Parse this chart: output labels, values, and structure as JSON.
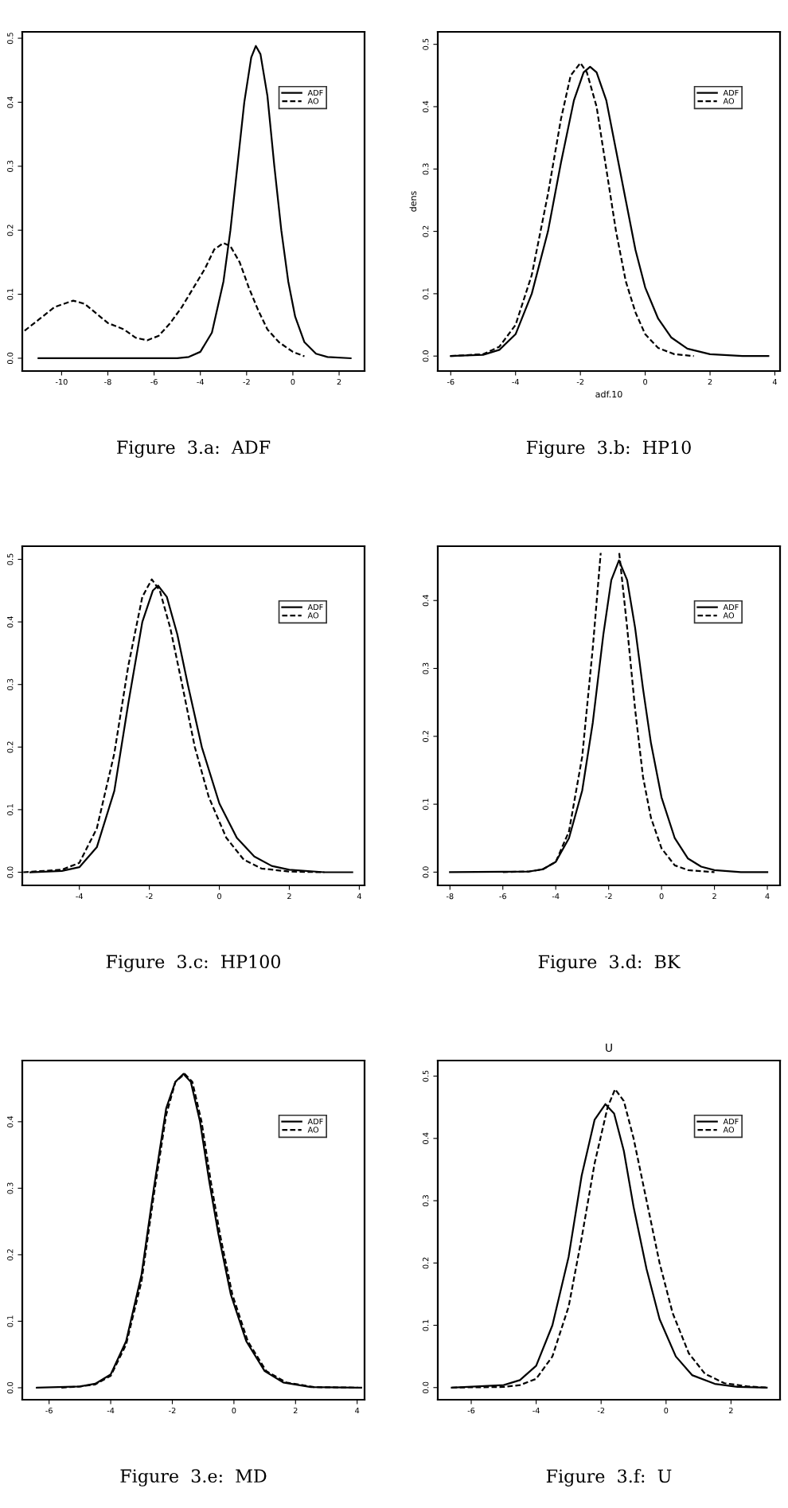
{
  "chart_data": [
    {
      "type": "line",
      "xlim": [
        -11.7,
        3.1
      ],
      "ylim": [
        -0.02,
        0.51
      ],
      "xticks": [
        -10,
        -8,
        -6,
        -4,
        -2,
        0,
        2
      ],
      "yticks": [
        {
          "value": 0,
          "label": "0.0"
        },
        {
          "value": 0.1,
          "label": "0.1"
        },
        {
          "value": 0.2,
          "label": "0.2"
        },
        {
          "value": 0.3,
          "label": "0.3"
        },
        {
          "value": 0.4,
          "label": "0.4"
        },
        {
          "value": 0.5,
          "label": "0.5"
        }
      ],
      "legend": "top right",
      "grid": false,
      "annotations": [
        "Figure  3.a:  ADF"
      ],
      "series": [
        {
          "name": "ADF",
          "color": "#000000",
          "line_style": "solid",
          "x": [
            -11,
            -5,
            -4.5,
            -4,
            -3.5,
            -3,
            -2.7,
            -2.4,
            -2.1,
            -1.8,
            -1.6,
            -1.4,
            -1.1,
            -0.8,
            -0.5,
            -0.2,
            0.1,
            0.5,
            1,
            1.5,
            2.5
          ],
          "values": [
            0,
            0,
            0.002,
            0.01,
            0.04,
            0.12,
            0.2,
            0.3,
            0.4,
            0.47,
            0.488,
            0.475,
            0.41,
            0.3,
            0.2,
            0.12,
            0.065,
            0.025,
            0.007,
            0.002,
            0
          ]
        },
        {
          "name": "AO",
          "color": "#000000",
          "line_style": "dashed",
          "x": [
            -11.6,
            -11,
            -10.3,
            -9.5,
            -9,
            -8.5,
            -8,
            -7.3,
            -6.8,
            -6.3,
            -5.8,
            -5.3,
            -4.8,
            -4.3,
            -3.8,
            -3.4,
            -3.0,
            -2.7,
            -2.3,
            -1.9,
            -1.5,
            -1.1,
            -0.6,
            0,
            0.5
          ],
          "values": [
            0.043,
            0.06,
            0.08,
            0.09,
            0.085,
            0.07,
            0.055,
            0.045,
            0.032,
            0.028,
            0.035,
            0.055,
            0.08,
            0.11,
            0.14,
            0.17,
            0.18,
            0.175,
            0.15,
            0.11,
            0.075,
            0.045,
            0.025,
            0.01,
            0.003
          ]
        }
      ]
    },
    {
      "type": "line",
      "xlabel": "adf.10",
      "ylabel": "dens",
      "xlim": [
        -6.4,
        4.16
      ],
      "ylim": [
        -0.024,
        0.52
      ],
      "xticks": [
        -6,
        -4,
        -2,
        0,
        2,
        4
      ],
      "yticks": [
        {
          "value": 0,
          "label": "0.0"
        },
        {
          "value": 0.1,
          "label": "0.1"
        },
        {
          "value": 0.2,
          "label": "0.2"
        },
        {
          "value": 0.3,
          "label": "0.3"
        },
        {
          "value": 0.4,
          "label": "0.4"
        },
        {
          "value": 0.5,
          "label": "0.5"
        }
      ],
      "legend": "top right",
      "grid": false,
      "annotations": [
        "Figure  3.b:  HP10"
      ],
      "series": [
        {
          "name": "ADF",
          "color": "#000000",
          "line_style": "solid",
          "x": [
            -6,
            -5,
            -4.5,
            -4,
            -3.5,
            -3,
            -2.6,
            -2.2,
            -1.9,
            -1.7,
            -1.5,
            -1.2,
            -0.9,
            -0.6,
            -0.3,
            0,
            0.4,
            0.8,
            1.3,
            2,
            3,
            3.8
          ],
          "values": [
            0,
            0.002,
            0.01,
            0.035,
            0.1,
            0.2,
            0.31,
            0.41,
            0.455,
            0.464,
            0.455,
            0.41,
            0.33,
            0.25,
            0.17,
            0.11,
            0.06,
            0.03,
            0.012,
            0.003,
            0,
            0
          ]
        },
        {
          "name": "AO",
          "color": "#000000",
          "line_style": "dashed",
          "x": [
            -6,
            -5,
            -4.5,
            -4,
            -3.5,
            -3,
            -2.6,
            -2.3,
            -2.0,
            -1.8,
            -1.5,
            -1.2,
            -0.9,
            -0.6,
            -0.3,
            0,
            0.4,
            0.9,
            1.5
          ],
          "values": [
            0,
            0.003,
            0.015,
            0.05,
            0.13,
            0.26,
            0.38,
            0.45,
            0.47,
            0.455,
            0.4,
            0.3,
            0.2,
            0.12,
            0.07,
            0.035,
            0.013,
            0.003,
            0
          ]
        }
      ]
    },
    {
      "type": "line",
      "xlim": [
        -5.63,
        4.15
      ],
      "ylim": [
        -0.021,
        0.521
      ],
      "xticks": [
        -4,
        -2,
        0,
        2,
        4
      ],
      "yticks": [
        {
          "value": 0,
          "label": "0.0"
        },
        {
          "value": 0.1,
          "label": "0.1"
        },
        {
          "value": 0.2,
          "label": "0.2"
        },
        {
          "value": 0.3,
          "label": "0.3"
        },
        {
          "value": 0.4,
          "label": "0.4"
        },
        {
          "value": 0.5,
          "label": "0.5"
        }
      ],
      "legend": "top right",
      "grid": false,
      "annotations": [
        "Figure  3.c:  HP100"
      ],
      "series": [
        {
          "name": "ADF",
          "color": "#000000",
          "line_style": "solid",
          "x": [
            -5.4,
            -4.5,
            -4,
            -3.5,
            -3,
            -2.6,
            -2.2,
            -1.9,
            -1.75,
            -1.5,
            -1.2,
            -0.9,
            -0.5,
            0,
            0.5,
            1,
            1.5,
            2,
            3,
            3.8
          ],
          "values": [
            0,
            0.002,
            0.008,
            0.04,
            0.13,
            0.27,
            0.4,
            0.45,
            0.458,
            0.44,
            0.38,
            0.3,
            0.2,
            0.11,
            0.055,
            0.025,
            0.01,
            0.004,
            0,
            0
          ]
        },
        {
          "name": "AO",
          "color": "#000000",
          "line_style": "dashed",
          "x": [
            -5.6,
            -4.5,
            -4,
            -3.5,
            -3,
            -2.6,
            -2.2,
            -1.93,
            -1.7,
            -1.4,
            -1.1,
            -0.7,
            -0.3,
            0.2,
            0.7,
            1.2,
            2,
            3
          ],
          "values": [
            0,
            0.004,
            0.015,
            0.07,
            0.19,
            0.33,
            0.44,
            0.468,
            0.45,
            0.39,
            0.31,
            0.2,
            0.12,
            0.055,
            0.02,
            0.006,
            0.001,
            0
          ]
        }
      ]
    },
    {
      "type": "line",
      "xlim": [
        -8.46,
        4.48
      ],
      "ylim": [
        -0.0195,
        0.48
      ],
      "xticks": [
        -8,
        -6,
        -4,
        -2,
        0,
        2,
        4
      ],
      "yticks": [
        {
          "value": 0,
          "label": "0.0"
        },
        {
          "value": 0.1,
          "label": "0.1"
        },
        {
          "value": 0.2,
          "label": "0.2"
        },
        {
          "value": 0.3,
          "label": "0.3"
        },
        {
          "value": 0.4,
          "label": "0.4"
        }
      ],
      "legend": "top right",
      "grid": false,
      "annotations": [
        "Figure  3.d:  BK"
      ],
      "series": [
        {
          "name": "ADF",
          "color": "#000000",
          "line_style": "solid",
          "x": [
            -8,
            -5,
            -4.5,
            -4,
            -3.5,
            -3,
            -2.6,
            -2.2,
            -1.9,
            -1.61,
            -1.3,
            -1,
            -0.7,
            -0.4,
            0,
            0.5,
            1,
            1.5,
            2,
            3,
            4
          ],
          "values": [
            0,
            0.001,
            0.004,
            0.015,
            0.05,
            0.12,
            0.22,
            0.35,
            0.43,
            0.459,
            0.43,
            0.36,
            0.27,
            0.19,
            0.11,
            0.05,
            0.02,
            0.008,
            0.003,
            0,
            0
          ]
        },
        {
          "name": "AO",
          "color": "#000000",
          "line_style": "dashed",
          "x": [
            -6,
            -5,
            -4.5,
            -4,
            -3.5,
            -3,
            -2.6,
            -2.3,
            -1.95,
            -1.6,
            -1.3,
            -1,
            -0.7,
            -0.4,
            0,
            0.5,
            1,
            2
          ],
          "values": [
            0,
            0.001,
            0.004,
            0.015,
            0.06,
            0.17,
            0.33,
            0.47,
            null,
            0.47,
            0.36,
            0.24,
            0.14,
            0.08,
            0.035,
            0.01,
            0.003,
            0
          ]
        }
      ]
    },
    {
      "type": "line",
      "xlim": [
        -6.87,
        4.24
      ],
      "ylim": [
        -0.018,
        0.492
      ],
      "xticks": [
        -6,
        -4,
        -2,
        0,
        2,
        4
      ],
      "yticks": [
        {
          "value": 0,
          "label": "0.0"
        },
        {
          "value": 0.1,
          "label": "0.1"
        },
        {
          "value": 0.2,
          "label": "0.2"
        },
        {
          "value": 0.3,
          "label": "0.3"
        },
        {
          "value": 0.4,
          "label": "0.4"
        }
      ],
      "legend": "top right",
      "grid": false,
      "annotations": [
        "Figure  3.e:  MD"
      ],
      "series": [
        {
          "name": "ADF",
          "color": "#000000",
          "line_style": "solid",
          "x": [
            -6.4,
            -5,
            -4.5,
            -4,
            -3.5,
            -3,
            -2.6,
            -2.2,
            -1.9,
            -1.64,
            -1.4,
            -1.1,
            -0.8,
            -0.5,
            -0.1,
            0.4,
            1,
            1.6,
            2.5,
            4
          ],
          "values": [
            0,
            0.002,
            0.006,
            0.02,
            0.07,
            0.17,
            0.3,
            0.42,
            0.46,
            0.472,
            0.46,
            0.4,
            0.31,
            0.23,
            0.14,
            0.07,
            0.025,
            0.008,
            0.001,
            0
          ]
        },
        {
          "name": "AO",
          "color": "#000000",
          "line_style": "dashed",
          "x": [
            -5.6,
            -5,
            -4.5,
            -4,
            -3.5,
            -3,
            -2.6,
            -2.2,
            -1.9,
            -1.6,
            -1.35,
            -1.05,
            -0.75,
            -0.45,
            -0.05,
            0.45,
            1.05,
            1.7,
            2.6,
            4.2
          ],
          "values": [
            0,
            0.002,
            0.005,
            0.018,
            0.065,
            0.16,
            0.29,
            0.41,
            0.46,
            0.472,
            0.46,
            0.4,
            0.31,
            0.23,
            0.14,
            0.07,
            0.025,
            0.008,
            0.001,
            0
          ]
        }
      ]
    },
    {
      "type": "line",
      "title": "U",
      "xlim": [
        -7.03,
        3.51
      ],
      "ylim": [
        -0.0195,
        0.525
      ],
      "xticks": [
        -6,
        -4,
        -2,
        0,
        2
      ],
      "yticks": [
        {
          "value": 0,
          "label": "0.0"
        },
        {
          "value": 0.1,
          "label": "0.1"
        },
        {
          "value": 0.2,
          "label": "0.2"
        },
        {
          "value": 0.3,
          "label": "0.3"
        },
        {
          "value": 0.4,
          "label": "0.4"
        },
        {
          "value": 0.5,
          "label": "0.5"
        }
      ],
      "legend": "top right",
      "grid": false,
      "annotations": [
        "Figure  3.f:  U"
      ],
      "series": [
        {
          "name": "ADF",
          "color": "#000000",
          "line_style": "solid",
          "x": [
            -6.6,
            -5,
            -4.5,
            -4,
            -3.5,
            -3,
            -2.6,
            -2.2,
            -1.87,
            -1.6,
            -1.3,
            -1,
            -0.6,
            -0.2,
            0.3,
            0.8,
            1.5,
            2.2,
            3.1
          ],
          "values": [
            0,
            0.004,
            0.012,
            0.035,
            0.1,
            0.21,
            0.34,
            0.43,
            0.455,
            0.44,
            0.38,
            0.29,
            0.19,
            0.11,
            0.05,
            0.02,
            0.006,
            0.001,
            0
          ]
        },
        {
          "name": "AO",
          "color": "#000000",
          "line_style": "dashed",
          "x": [
            -6.6,
            -5,
            -4.5,
            -4,
            -3.5,
            -3,
            -2.6,
            -2.2,
            -1.8,
            -1.57,
            -1.3,
            -1,
            -0.6,
            -0.2,
            0.2,
            0.7,
            1.2,
            1.8,
            2.5,
            3.1
          ],
          "values": [
            0,
            0.001,
            0.004,
            0.014,
            0.05,
            0.13,
            0.24,
            0.36,
            0.45,
            0.479,
            0.46,
            0.4,
            0.3,
            0.2,
            0.12,
            0.055,
            0.022,
            0.007,
            0.002,
            0
          ]
        }
      ]
    }
  ]
}
